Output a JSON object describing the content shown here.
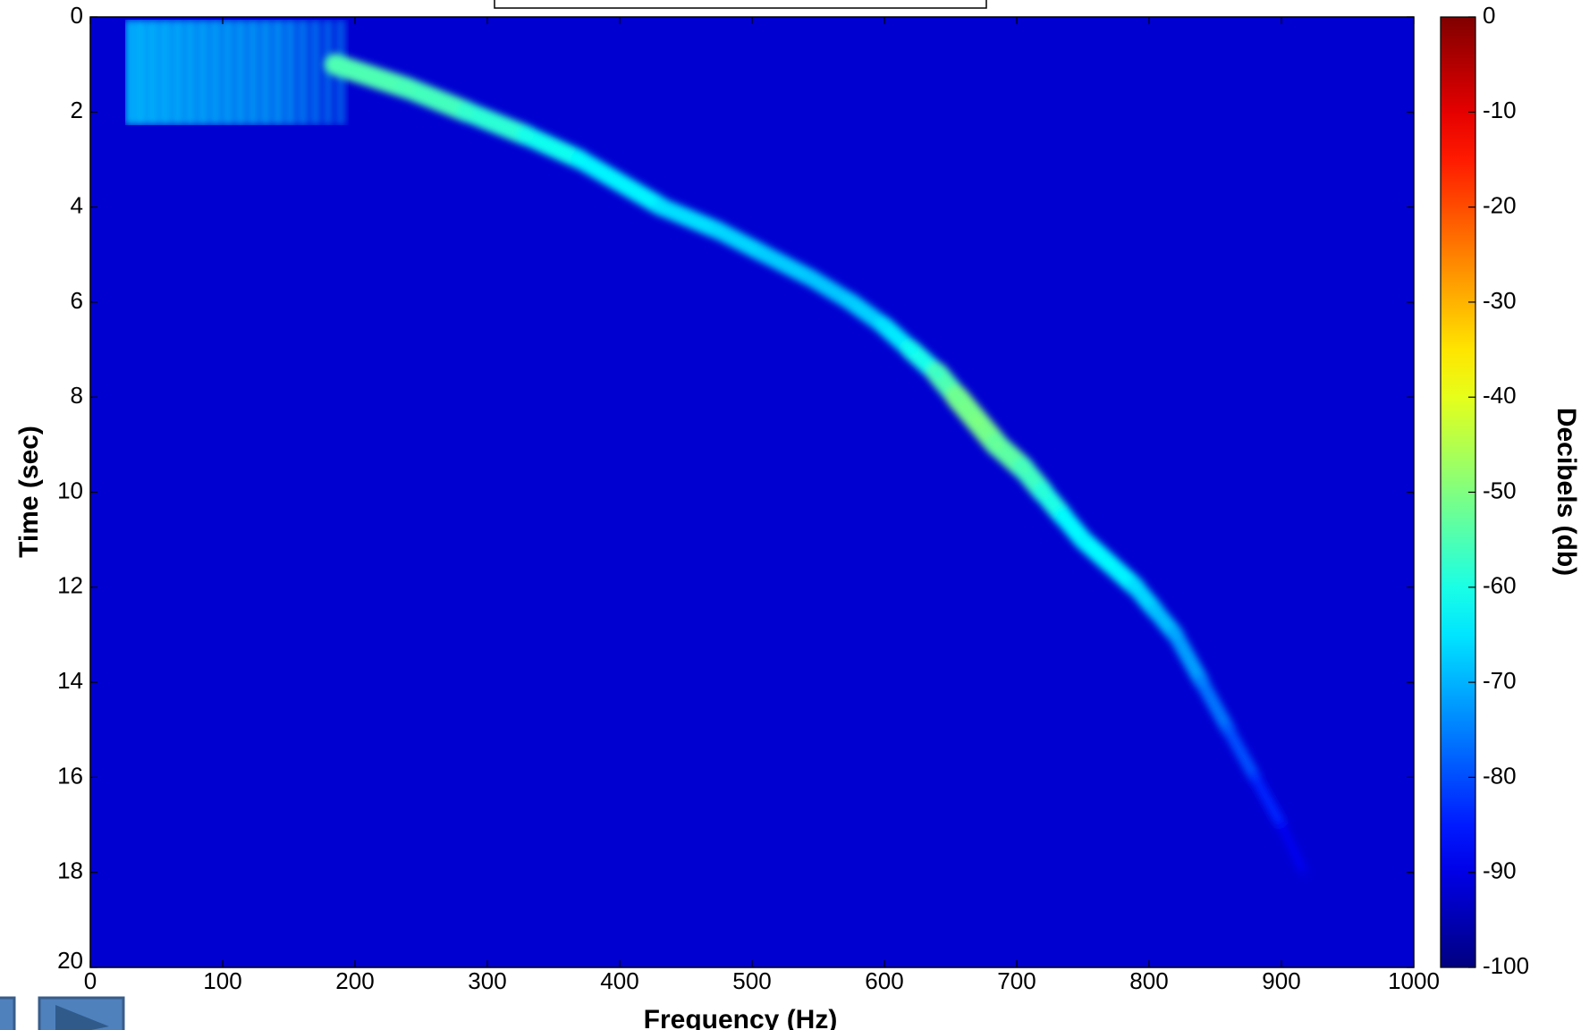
{
  "chart_data": {
    "type": "spectrogram",
    "xlabel": "Frequency (Hz)",
    "ylabel": "Time (sec)",
    "xlim": [
      0,
      1000
    ],
    "ylim": [
      20,
      0
    ],
    "xticks": [
      0,
      100,
      200,
      300,
      400,
      500,
      600,
      700,
      800,
      900,
      1000
    ],
    "yticks": [
      0,
      2,
      4,
      6,
      8,
      10,
      12,
      14,
      16,
      18,
      20
    ],
    "colormap": "jet",
    "colorbar": {
      "label": "Decibels (db)",
      "lim": [
        -100,
        0
      ],
      "ticks": [
        0,
        -10,
        -20,
        -30,
        -40,
        -50,
        -60,
        -70,
        -80,
        -90,
        -100
      ]
    },
    "ridge": {
      "x": [
        185,
        240,
        285,
        330,
        370,
        432,
        475,
        510,
        545,
        575,
        600,
        620,
        640,
        655,
        670,
        685,
        705,
        720,
        735,
        750,
        770,
        790,
        805,
        820,
        840,
        860,
        880,
        900,
        917
      ],
      "y": [
        1,
        1.5,
        2,
        2.5,
        3,
        4,
        4.5,
        5,
        5.5,
        6,
        6.5,
        7,
        7.5,
        8,
        8.5,
        9,
        9.5,
        10,
        10.5,
        11,
        11.5,
        12,
        12.5,
        13,
        14,
        15,
        16,
        17,
        18
      ],
      "values": [
        -55,
        -55,
        -57,
        -60,
        -62,
        -65,
        -66,
        -67,
        -68,
        -68,
        -66,
        -63,
        -58,
        -52,
        -50,
        -52,
        -55,
        -58,
        -62,
        -64,
        -62,
        -65,
        -68,
        -70,
        -74,
        -78,
        -82,
        -86,
        -92
      ]
    }
  }
}
